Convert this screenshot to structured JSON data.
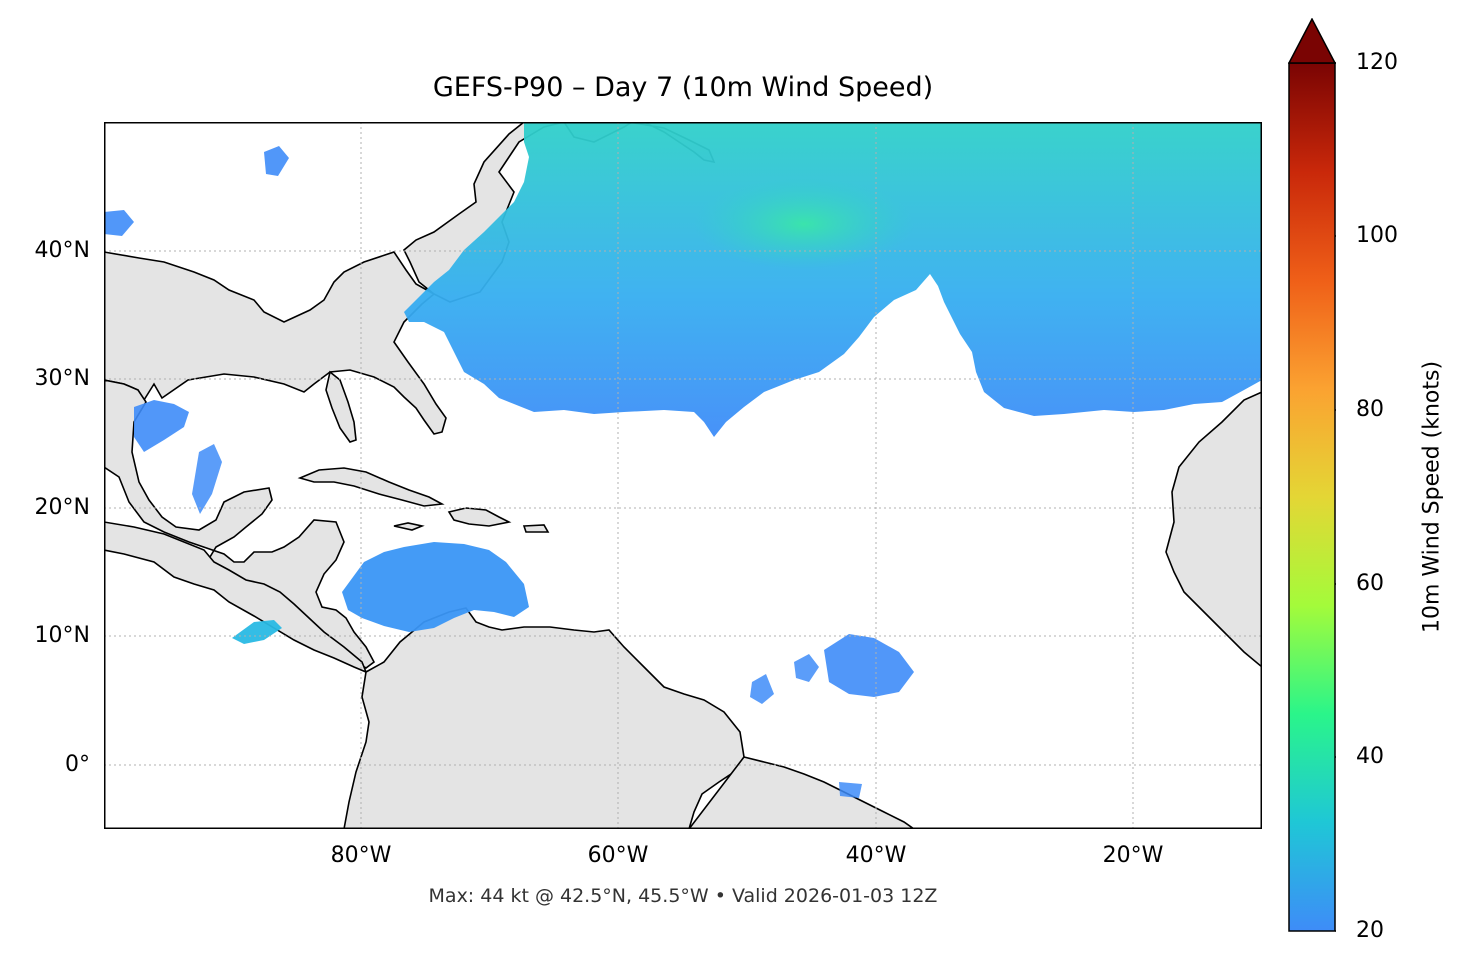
{
  "title": "GEFS-P90 – Day 7 (10m Wind Speed)",
  "footer": "Max: 44 kt @ 42.5°N, 45.5°W • Valid 2026-01-03 12Z",
  "map": {
    "extent": {
      "lon_min": -100,
      "lon_max": -10,
      "lat_min": -5,
      "lat_max": 50
    },
    "lat_ticks": [
      {
        "value": 40,
        "label": "40°N"
      },
      {
        "value": 30,
        "label": "30°N"
      },
      {
        "value": 20,
        "label": "20°N"
      },
      {
        "value": 10,
        "label": "10°N"
      },
      {
        "value": 0,
        "label": "0°"
      }
    ],
    "lon_ticks": [
      {
        "value": -80,
        "label": "80°W"
      },
      {
        "value": -60,
        "label": "60°W"
      },
      {
        "value": -40,
        "label": "40°W"
      },
      {
        "value": -20,
        "label": "20°W"
      }
    ],
    "gridlines": "dotted",
    "land_color": "#e4e4e4",
    "ocean_color": "#ffffff",
    "coastline_color": "#000000",
    "border_color": "#666666"
  },
  "colorbar": {
    "label": "10m Wind Speed (knots)",
    "min": 20,
    "max": 120,
    "extend": "max",
    "ticks": [
      {
        "value": 120,
        "label": "120"
      },
      {
        "value": 100,
        "label": "100"
      },
      {
        "value": 80,
        "label": "80"
      },
      {
        "value": 60,
        "label": "60"
      },
      {
        "value": 40,
        "label": "40"
      },
      {
        "value": 20,
        "label": "20"
      }
    ],
    "colormap": "turbo",
    "colors": [
      "#3e8cf8",
      "#1fc7d6",
      "#2af58a",
      "#a4fb3a",
      "#e4d635",
      "#fba231",
      "#ef5f18",
      "#c9280a",
      "#7a0403"
    ]
  },
  "wind_field": {
    "units": "knots",
    "max_speed": 44,
    "max_location": {
      "lat": 42.5,
      "lon": -45.5
    },
    "valid_time": "2026-01-03 12Z",
    "regions": [
      {
        "name": "north-atlantic-band",
        "typical_speed": 30,
        "peak_speed": 44
      },
      {
        "name": "caribbean-sea",
        "typical_speed": 24
      },
      {
        "name": "gulf-of-mexico",
        "typical_speed": 22
      },
      {
        "name": "eastern-pacific-gap",
        "typical_speed": 28
      },
      {
        "name": "tropical-atlantic-patches",
        "typical_speed": 22
      }
    ]
  }
}
